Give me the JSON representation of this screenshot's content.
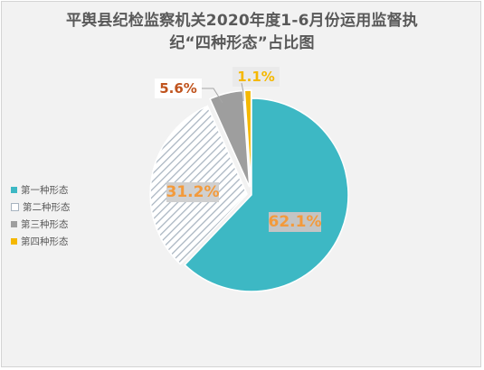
{
  "chart_data": {
    "type": "pie",
    "title": "平舆县纪检监察机关2020年度1-6月份运用监督执纪“四种形态”占比图",
    "title_lines": [
      "平舆县纪检监察机关2020年度1-6月份运用监督执",
      "纪“四种形态”占比图"
    ],
    "categories": [
      "第一种形态",
      "第二种形态",
      "第三种形态",
      "第四种形态"
    ],
    "values": [
      62.1,
      31.2,
      5.6,
      1.1
    ],
    "data_labels": [
      "62.1%",
      "31.2%",
      "5.6%",
      "1.1%"
    ],
    "colors": [
      "#3db8c4",
      "#a8b4c0",
      "#9e9e9e",
      "#f5b800"
    ],
    "label_colors": [
      "#f39a3b",
      "#f39a3b",
      "#c0541e",
      "#f5b800"
    ],
    "legend_position": "left"
  }
}
